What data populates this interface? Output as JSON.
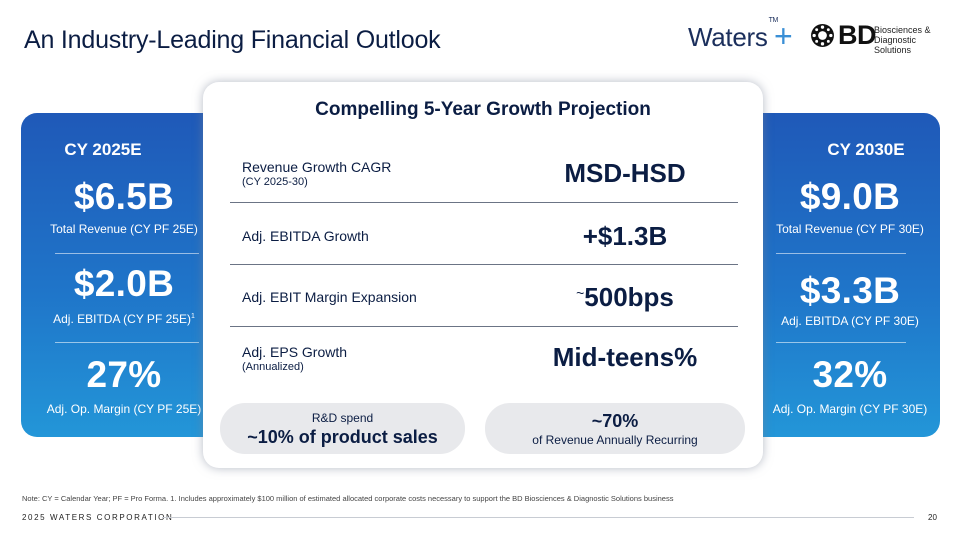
{
  "slide": {
    "title": "An Industry-Leading Financial Outlook",
    "logo_waters": "Waters",
    "logo_waters_tm": "TM",
    "logo_plus": "+",
    "logo_bd": "BD",
    "logo_bd_sub_line1": "Biosciences &",
    "logo_bd_sub_line2": "Diagnostic Solutions"
  },
  "left_panel": {
    "header": "CY 2025E",
    "revenue_value": "$6.5B",
    "revenue_label": "Total Revenue (CY PF 25E)",
    "ebitda_value": "$2.0B",
    "ebitda_label": "Adj. EBITDA (CY PF 25E)",
    "ebitda_footnote": "1",
    "margin_value": "27%",
    "margin_label": "Adj. Op. Margin (CY PF 25E)"
  },
  "right_panel": {
    "header": "CY 2030E",
    "revenue_value": "$9.0B",
    "revenue_label": "Total Revenue (CY PF 30E)",
    "ebitda_value": "$3.3B",
    "ebitda_label": "Adj. EBITDA (CY PF 30E)",
    "margin_value": "32%",
    "margin_label": "Adj. Op. Margin (CY PF 30E)"
  },
  "center": {
    "title": "Compelling 5-Year Growth Projection",
    "rows": [
      {
        "metric": "Revenue Growth CAGR",
        "sub": "(CY 2025-30)",
        "value": "MSD-HSD"
      },
      {
        "metric": "Adj. EBITDA Growth",
        "sub": "",
        "value": "+$1.3B"
      },
      {
        "metric": "Adj. EBIT Margin Expansion",
        "sub": "",
        "value_prefix": "~",
        "value": "500bps"
      },
      {
        "metric": "Adj. EPS Growth",
        "sub": "(Annualized)",
        "value": "Mid-teens%"
      }
    ],
    "pill_left": {
      "top": "R&D spend",
      "bottom": "~10% of product sales"
    },
    "pill_right": {
      "top": "~70%",
      "bottom": "of Revenue Annually Recurring"
    }
  },
  "footer": {
    "note": "Note: CY = Calendar Year; PF = Pro Forma. 1. Includes approximately $100 million of estimated allocated corporate costs necessary to support the BD Biosciences & Diagnostic Solutions business",
    "company": "2025 WATERS CORPORATION",
    "page_number": "20"
  }
}
